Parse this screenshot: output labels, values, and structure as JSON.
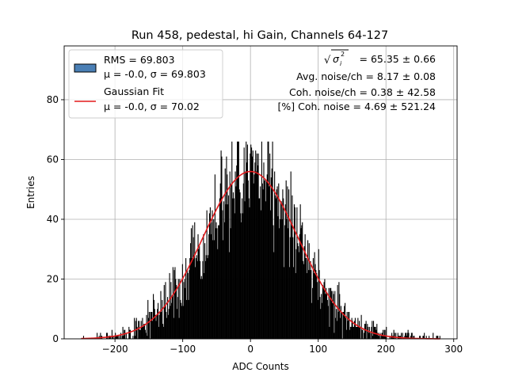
{
  "chart_data": {
    "type": "bar",
    "title": "Run 458, pedestal, hi Gain, Channels 64-127",
    "xlabel": "ADC Counts",
    "ylabel": "Entries",
    "xlim": [
      -275,
      305
    ],
    "ylim": [
      0,
      98
    ],
    "xticks": [
      -200,
      -100,
      0,
      100,
      200,
      300
    ],
    "xtick_labels": [
      "−200",
      "−100",
      "0",
      "100",
      "200",
      "300"
    ],
    "yticks": [
      0,
      20,
      40,
      60,
      80
    ],
    "grid": true,
    "legend_position": "upper-left",
    "histogram": {
      "label": "RMS = 69.803",
      "sublabel": "μ = -0.0, σ = 69.803",
      "mean": -0.0,
      "sigma": 69.803,
      "bin_range": [
        -250,
        280
      ],
      "bin_width": 1,
      "peak_entries": 66,
      "color": "#000000",
      "legend_color": "#4a7fb5"
    },
    "fit": {
      "label": "Gaussian Fit",
      "sublabel": "μ = -0.0, σ = 70.02",
      "mu": 0.0,
      "sigma": 70.02,
      "amplitude": 56,
      "color": "#e41a1c"
    },
    "annotations": [
      {
        "prefix": "√",
        "var": "σ",
        "sub": "i",
        "sup": "2",
        "text": " = 65.35 ± 0.66"
      },
      {
        "text": "Avg. noise/ch = 8.17 ± 0.08"
      },
      {
        "text": "Coh. noise/ch = 0.38 ± 42.58"
      },
      {
        "text": "[%] Coh. noise = 4.69 ± 521.24"
      }
    ]
  }
}
